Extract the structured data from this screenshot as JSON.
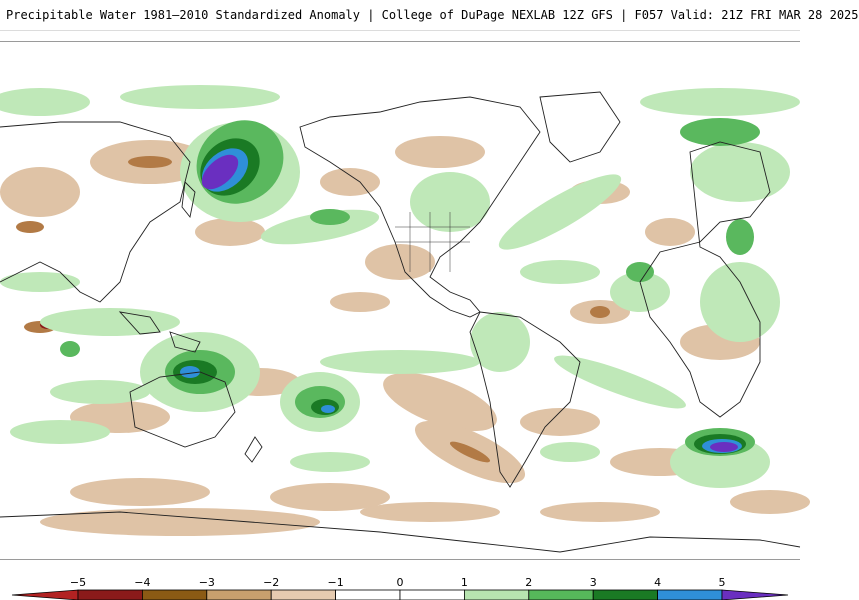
{
  "header": {
    "title": "Precipitable Water 1981–2010 Standardized Anomaly | College of DuPage NEXLAB  12Z GFS | F057 Valid: 21Z FRI MAR 28 2025"
  },
  "legend": {
    "ticks": [
      "−5",
      "−4",
      "−3",
      "−2",
      "−1",
      "0",
      "1",
      "2",
      "3",
      "4",
      "5"
    ],
    "colors": [
      "#b22222",
      "#8b1a1a",
      "#8b5a14",
      "#c8a06e",
      "#e6cbb0",
      "#ffffff",
      "#ffffff",
      "#b7e4b0",
      "#56b85a",
      "#1a7a24",
      "#2f8fd8",
      "#6a2fc0"
    ]
  },
  "map": {
    "projection": "global lat-lon",
    "colors": {
      "dry_strong": "#8b1a1a",
      "dry_moderate": "#b27a45",
      "dry_weak": "#dfc3a6",
      "wet_weak": "#bfe8b8",
      "wet_moderate": "#5ab85e",
      "wet_strong": "#1a7a24",
      "wet_very_strong": "#2f8fd8",
      "wet_extreme": "#6a2fc0",
      "coastline": "#222222"
    }
  }
}
